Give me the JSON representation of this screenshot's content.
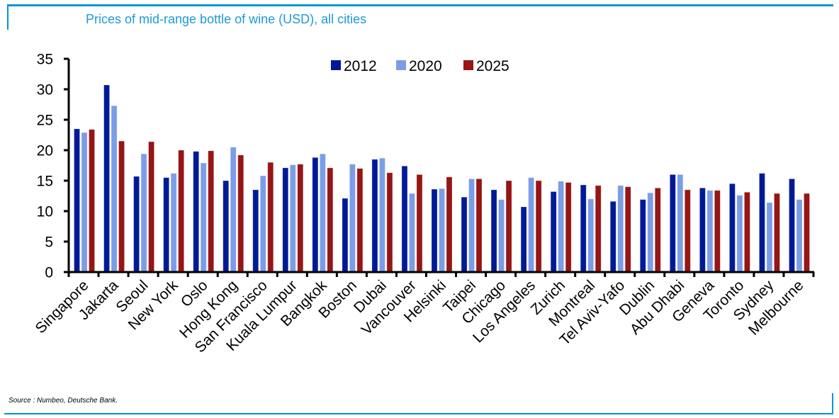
{
  "header": {
    "title": "Prices of mid-range bottle of wine (USD), all cities"
  },
  "footer": {
    "source": "Source : Numbeo, Deutsche Bank."
  },
  "chart_data": {
    "type": "bar",
    "title": "Prices of mid-range bottle of wine (USD), all cities",
    "xlabel": "",
    "ylabel": "",
    "ylim": [
      0,
      35
    ],
    "yticks": [
      0,
      5,
      10,
      15,
      20,
      25,
      30,
      35
    ],
    "grid": false,
    "legend_position": "top-center",
    "categories": [
      "Singapore",
      "Jakarta",
      "Seoul",
      "New York",
      "Oslo",
      "Hong Kong",
      "San Francisco",
      "Kuala Lumpur",
      "Bangkok",
      "Boston",
      "Dubai",
      "Vancouver",
      "Helsinki",
      "Taipei",
      "Chicago",
      "Los Angeles",
      "Zurich",
      "Montreal",
      "Tel Aviv-Yafo",
      "Dublin",
      "Abu Dhabi",
      "Geneva",
      "Toronto",
      "Sydney",
      "Melbourne"
    ],
    "series": [
      {
        "name": "2012",
        "color": "#001a96",
        "values": [
          23.5,
          30.7,
          15.7,
          15.5,
          19.8,
          15.0,
          13.5,
          17.1,
          18.8,
          12.1,
          18.5,
          17.4,
          13.6,
          12.3,
          13.5,
          10.7,
          13.2,
          14.3,
          11.6,
          11.9,
          16.0,
          13.8,
          14.5,
          16.2,
          15.3
        ]
      },
      {
        "name": "2020",
        "color": "#7b9de8",
        "values": [
          22.9,
          27.3,
          19.4,
          16.2,
          17.9,
          20.5,
          15.8,
          17.6,
          19.4,
          17.7,
          18.7,
          12.9,
          13.7,
          15.3,
          11.9,
          15.5,
          14.9,
          12.0,
          14.2,
          13.0,
          16.0,
          13.4,
          12.6,
          11.4,
          11.9
        ]
      },
      {
        "name": "2025",
        "color": "#961515",
        "values": [
          23.4,
          21.5,
          21.4,
          20.0,
          19.9,
          19.2,
          18.0,
          17.7,
          17.1,
          17.0,
          16.3,
          16.0,
          15.6,
          15.3,
          15.0,
          15.0,
          14.7,
          14.2,
          14.0,
          13.8,
          13.5,
          13.4,
          13.1,
          12.9,
          12.9
        ]
      }
    ]
  }
}
